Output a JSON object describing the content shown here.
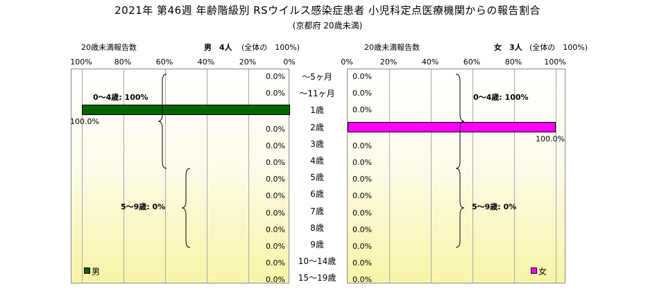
{
  "title": "2021年 第46週 年齢階級別 RSウイルス感染症患者 小児科定点医療機関からの報告割合",
  "subtitle": "(京都府 20歳未満)",
  "colors": {
    "male": "#006400",
    "female": "#ff00ff",
    "grid": "#a9a9a9",
    "plot_bg_bottom": "#f8f4a6"
  },
  "chart_data": {
    "type": "bar",
    "orientation": "horizontal-population-pyramid",
    "categories": [
      "～5ヶ月",
      "～11ヶ月",
      "1歳",
      "2歳",
      "3歳",
      "4歳",
      "5歳",
      "6歳",
      "7歳",
      "8歳",
      "9歳",
      "10～14歳",
      "15～19歳"
    ],
    "xlim": [
      0,
      100
    ],
    "ticks": [
      "0%",
      "20%",
      "40%",
      "60%",
      "80%",
      "100%"
    ],
    "left_ticks": [
      "100%",
      "80%",
      "60%",
      "40%",
      "20%",
      "0%"
    ],
    "series": [
      {
        "name": "男",
        "header_label": "20歳未満報告数",
        "count_text": "男　4人",
        "total_text": "(全体の　100%)",
        "values": [
          0,
          0,
          100,
          0,
          0,
          0,
          0,
          0,
          0,
          0,
          0,
          0,
          0
        ],
        "labels": [
          "0.0%",
          "0.0%",
          "100.0%",
          "0.0%",
          "0.0%",
          "0.0%",
          "0.0%",
          "0.0%",
          "0.0%",
          "0.0%",
          "0.0%",
          "0.0%",
          "0.0%"
        ],
        "group_labels": [
          "0～4歳: 100%",
          "5～9歳: 0%"
        ],
        "legend": "男"
      },
      {
        "name": "女",
        "header_label": "20歳未満報告数",
        "count_text": "女　3人",
        "total_text": "(全体の　100%)",
        "values": [
          0,
          0,
          0,
          100,
          0,
          0,
          0,
          0,
          0,
          0,
          0,
          0,
          0
        ],
        "labels": [
          "0.0%",
          "0.0%",
          "0.0%",
          "100.0%",
          "0.0%",
          "0.0%",
          "0.0%",
          "0.0%",
          "0.0%",
          "0.0%",
          "0.0%",
          "0.0%",
          "0.0%"
        ],
        "group_labels": [
          "0～4歳: 100%",
          "5～9歳: 0%"
        ],
        "legend": "女"
      }
    ]
  }
}
